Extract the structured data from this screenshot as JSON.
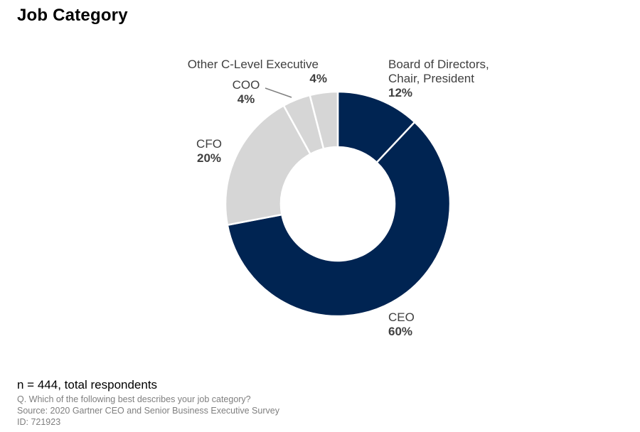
{
  "title": "Job Category",
  "chart_data": {
    "type": "pie",
    "donut": true,
    "start_angle_deg": 0,
    "direction": "clockwise",
    "slices": [
      {
        "label_lines": [
          "Board of Directors,",
          "Chair, President"
        ],
        "pct_label": "12%",
        "value": 12,
        "color": "#002452"
      },
      {
        "label_lines": [
          "CEO"
        ],
        "pct_label": "60%",
        "value": 60,
        "color": "#002452"
      },
      {
        "label_lines": [
          "CFO"
        ],
        "pct_label": "20%",
        "value": 20,
        "color": "#d6d6d6"
      },
      {
        "label_lines": [
          "COO"
        ],
        "pct_label": "4%",
        "value": 4,
        "color": "#d6d6d6"
      },
      {
        "label_lines": [
          "Other C-Level Executive"
        ],
        "pct_label": "4%",
        "value": 4,
        "color": "#d6d6d6"
      }
    ],
    "legend": "none"
  },
  "footer": {
    "n": "n = 444, total respondents",
    "question": "Q. Which of the following best describes your job category?",
    "source": "Source: 2020 Gartner CEO and Senior Business Executive Survey",
    "id": "ID: 721923"
  }
}
